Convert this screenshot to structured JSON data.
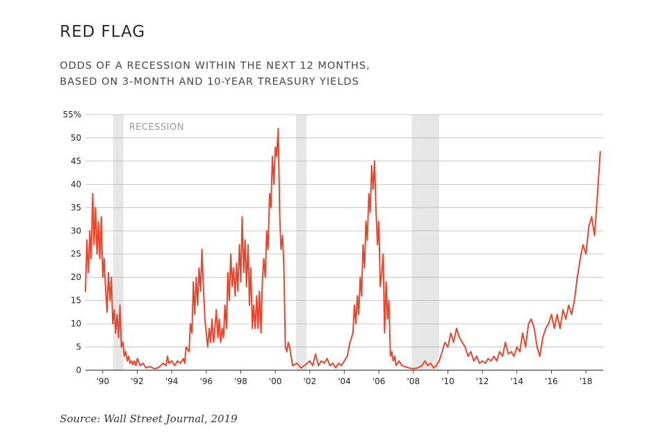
{
  "title": "RED FLAG",
  "subtitle_line1": "ODDS OF A RECESSION WITHIN THE NEXT 12 MONTHS,",
  "subtitle_line2": "BASED ON 3-MONTH AND 10-YEAR TREASURY YIELDS",
  "source": "Source: Wall Street Journal, 2019",
  "colors": {
    "line": "#e8452d",
    "recession_band": "#e6e6e6",
    "grid": "#b8b8b8",
    "axis": "#444444"
  },
  "chart_data": {
    "type": "line",
    "title": "RED FLAG",
    "subtitle": "ODDS OF A RECESSION WITHIN THE NEXT 12 MONTHS, BASED ON 3-MONTH AND 10-YEAR TREASURY YIELDS",
    "xlabel": "",
    "ylabel": "",
    "xlim": [
      1989.0,
      2019.0
    ],
    "ylim": [
      0,
      55
    ],
    "y_ticks": [
      0,
      5,
      10,
      15,
      20,
      25,
      30,
      35,
      40,
      45,
      50,
      55
    ],
    "y_tick_labels": [
      "0",
      "5",
      "10",
      "15",
      "20",
      "25",
      "30",
      "35",
      "40",
      "45",
      "50",
      "55%"
    ],
    "x_ticks": [
      1990,
      1992,
      1994,
      1996,
      1998,
      2000,
      2002,
      2004,
      2006,
      2008,
      2010,
      2012,
      2014,
      2016,
      2018
    ],
    "x_tick_labels": [
      "'90",
      "'92",
      "'94",
      "'96",
      "'98",
      "'00",
      "'02",
      "'04",
      "'06",
      "'08",
      "'10",
      "'12",
      "'14",
      "'16",
      "'18"
    ],
    "grid": "horizontal",
    "legend": "none",
    "recession_label": "RECESSION",
    "recessions": [
      {
        "start": 1990.6,
        "end": 1991.2
      },
      {
        "start": 2001.2,
        "end": 2001.8
      },
      {
        "start": 2007.9,
        "end": 2009.5
      }
    ],
    "series": [
      {
        "values": [
          [
            1989.0,
            17
          ],
          [
            1989.08,
            28
          ],
          [
            1989.17,
            21
          ],
          [
            1989.25,
            30
          ],
          [
            1989.33,
            24
          ],
          [
            1989.42,
            38
          ],
          [
            1989.5,
            27
          ],
          [
            1989.58,
            35
          ],
          [
            1989.67,
            25
          ],
          [
            1989.75,
            32
          ],
          [
            1989.83,
            24
          ],
          [
            1989.92,
            33
          ],
          [
            1990.0,
            20
          ],
          [
            1990.08,
            24
          ],
          [
            1990.17,
            17
          ],
          [
            1990.25,
            12.5
          ],
          [
            1990.33,
            21
          ],
          [
            1990.42,
            15
          ],
          [
            1990.5,
            20
          ],
          [
            1990.58,
            10
          ],
          [
            1990.67,
            13
          ],
          [
            1990.75,
            8
          ],
          [
            1990.83,
            12
          ],
          [
            1990.92,
            7
          ],
          [
            1991.0,
            14
          ],
          [
            1991.08,
            5
          ],
          [
            1991.17,
            6
          ],
          [
            1991.25,
            3
          ],
          [
            1991.33,
            4
          ],
          [
            1991.42,
            2
          ],
          [
            1991.5,
            3
          ],
          [
            1991.58,
            1.5
          ],
          [
            1991.67,
            2
          ],
          [
            1991.75,
            1.2
          ],
          [
            1991.83,
            2
          ],
          [
            1991.92,
            1
          ],
          [
            1992.0,
            2.5
          ],
          [
            1992.17,
            1
          ],
          [
            1992.33,
            1.5
          ],
          [
            1992.5,
            0.5
          ],
          [
            1992.75,
            0.8
          ],
          [
            1993.0,
            0.3
          ],
          [
            1993.25,
            0.6
          ],
          [
            1993.5,
            1.5
          ],
          [
            1993.67,
            1
          ],
          [
            1993.75,
            3
          ],
          [
            1993.83,
            1.5
          ],
          [
            1994.0,
            2
          ],
          [
            1994.17,
            1
          ],
          [
            1994.33,
            2
          ],
          [
            1994.5,
            1.5
          ],
          [
            1994.67,
            2.5
          ],
          [
            1994.75,
            1.5
          ],
          [
            1994.83,
            5
          ],
          [
            1995.0,
            4
          ],
          [
            1995.08,
            10
          ],
          [
            1995.17,
            8
          ],
          [
            1995.25,
            19
          ],
          [
            1995.33,
            12
          ],
          [
            1995.42,
            20
          ],
          [
            1995.5,
            14
          ],
          [
            1995.58,
            22
          ],
          [
            1995.67,
            17
          ],
          [
            1995.75,
            26
          ],
          [
            1995.83,
            18
          ],
          [
            1995.92,
            11
          ],
          [
            1996.0,
            8
          ],
          [
            1996.08,
            5
          ],
          [
            1996.17,
            9
          ],
          [
            1996.25,
            6
          ],
          [
            1996.33,
            11
          ],
          [
            1996.42,
            6
          ],
          [
            1996.5,
            9
          ],
          [
            1996.58,
            13
          ],
          [
            1996.67,
            7
          ],
          [
            1996.75,
            11
          ],
          [
            1996.83,
            6
          ],
          [
            1996.92,
            9
          ],
          [
            1997.0,
            7
          ],
          [
            1997.08,
            14
          ],
          [
            1997.17,
            9
          ],
          [
            1997.25,
            21
          ],
          [
            1997.33,
            15
          ],
          [
            1997.42,
            25
          ],
          [
            1997.5,
            18
          ],
          [
            1997.58,
            22
          ],
          [
            1997.67,
            16
          ],
          [
            1997.75,
            23
          ],
          [
            1997.83,
            17
          ],
          [
            1997.92,
            27
          ],
          [
            1998.0,
            19
          ],
          [
            1998.08,
            33
          ],
          [
            1998.17,
            21
          ],
          [
            1998.25,
            28
          ],
          [
            1998.33,
            18
          ],
          [
            1998.42,
            27
          ],
          [
            1998.5,
            14
          ],
          [
            1998.58,
            22
          ],
          [
            1998.67,
            9
          ],
          [
            1998.75,
            14
          ],
          [
            1998.83,
            9
          ],
          [
            1998.92,
            16
          ],
          [
            1999.0,
            9
          ],
          [
            1999.08,
            17
          ],
          [
            1999.17,
            8
          ],
          [
            1999.25,
            19
          ],
          [
            1999.33,
            24
          ],
          [
            1999.42,
            20
          ],
          [
            1999.5,
            30
          ],
          [
            1999.58,
            26
          ],
          [
            1999.67,
            38
          ],
          [
            1999.75,
            35
          ],
          [
            1999.83,
            46
          ],
          [
            1999.92,
            40
          ],
          [
            2000.0,
            48
          ],
          [
            2000.08,
            46
          ],
          [
            2000.17,
            52
          ],
          [
            2000.25,
            34
          ],
          [
            2000.33,
            26
          ],
          [
            2000.42,
            29
          ],
          [
            2000.5,
            22
          ],
          [
            2000.58,
            5
          ],
          [
            2000.67,
            4
          ],
          [
            2000.75,
            6
          ],
          [
            2000.83,
            5
          ],
          [
            2000.92,
            3
          ],
          [
            2001.0,
            1
          ],
          [
            2001.25,
            1.5
          ],
          [
            2001.5,
            0.5
          ],
          [
            2001.75,
            1.2
          ],
          [
            2002.0,
            2
          ],
          [
            2002.17,
            1
          ],
          [
            2002.33,
            3.5
          ],
          [
            2002.5,
            1
          ],
          [
            2002.67,
            2
          ],
          [
            2002.83,
            1.5
          ],
          [
            2003.0,
            2.5
          ],
          [
            2003.17,
            1
          ],
          [
            2003.33,
            1.5
          ],
          [
            2003.5,
            0.5
          ],
          [
            2003.67,
            1.5
          ],
          [
            2003.83,
            1
          ],
          [
            2004.0,
            2
          ],
          [
            2004.17,
            3
          ],
          [
            2004.33,
            6
          ],
          [
            2004.5,
            8
          ],
          [
            2004.58,
            14
          ],
          [
            2004.67,
            10
          ],
          [
            2004.75,
            16
          ],
          [
            2004.83,
            12
          ],
          [
            2004.92,
            20
          ],
          [
            2005.0,
            16
          ],
          [
            2005.08,
            27
          ],
          [
            2005.17,
            22
          ],
          [
            2005.25,
            32
          ],
          [
            2005.33,
            28
          ],
          [
            2005.42,
            38
          ],
          [
            2005.5,
            34
          ],
          [
            2005.58,
            44
          ],
          [
            2005.67,
            39
          ],
          [
            2005.75,
            45
          ],
          [
            2005.83,
            35
          ],
          [
            2005.92,
            27
          ],
          [
            2006.0,
            32
          ],
          [
            2006.08,
            18
          ],
          [
            2006.17,
            21
          ],
          [
            2006.25,
            25
          ],
          [
            2006.33,
            8
          ],
          [
            2006.42,
            19
          ],
          [
            2006.5,
            11
          ],
          [
            2006.58,
            15
          ],
          [
            2006.67,
            3
          ],
          [
            2006.75,
            4
          ],
          [
            2006.83,
            2
          ],
          [
            2006.92,
            3
          ],
          [
            2007.0,
            1
          ],
          [
            2007.17,
            2
          ],
          [
            2007.33,
            1
          ],
          [
            2007.5,
            0.8
          ],
          [
            2007.75,
            0.5
          ],
          [
            2008.0,
            0.3
          ],
          [
            2008.25,
            0.5
          ],
          [
            2008.5,
            1
          ],
          [
            2008.67,
            2
          ],
          [
            2008.83,
            1
          ],
          [
            2009.0,
            1.5
          ],
          [
            2009.17,
            0.5
          ],
          [
            2009.33,
            1
          ],
          [
            2009.5,
            2
          ],
          [
            2009.67,
            4
          ],
          [
            2009.83,
            6
          ],
          [
            2010.0,
            5
          ],
          [
            2010.17,
            8
          ],
          [
            2010.33,
            6
          ],
          [
            2010.5,
            9
          ],
          [
            2010.67,
            7
          ],
          [
            2010.83,
            6
          ],
          [
            2011.0,
            5
          ],
          [
            2011.17,
            3
          ],
          [
            2011.33,
            4
          ],
          [
            2011.5,
            2
          ],
          [
            2011.67,
            3
          ],
          [
            2011.83,
            1.5
          ],
          [
            2012.0,
            2
          ],
          [
            2012.17,
            1.5
          ],
          [
            2012.33,
            2.5
          ],
          [
            2012.5,
            2
          ],
          [
            2012.67,
            3
          ],
          [
            2012.83,
            2
          ],
          [
            2013.0,
            4
          ],
          [
            2013.17,
            3
          ],
          [
            2013.33,
            6
          ],
          [
            2013.5,
            3.5
          ],
          [
            2013.67,
            4
          ],
          [
            2013.83,
            3
          ],
          [
            2014.0,
            5
          ],
          [
            2014.17,
            4
          ],
          [
            2014.33,
            8
          ],
          [
            2014.5,
            5
          ],
          [
            2014.67,
            10
          ],
          [
            2014.83,
            11
          ],
          [
            2015.0,
            9
          ],
          [
            2015.17,
            5
          ],
          [
            2015.33,
            3
          ],
          [
            2015.5,
            7
          ],
          [
            2015.67,
            9
          ],
          [
            2015.83,
            10
          ],
          [
            2016.0,
            12
          ],
          [
            2016.17,
            9
          ],
          [
            2016.33,
            12
          ],
          [
            2016.5,
            9
          ],
          [
            2016.67,
            13
          ],
          [
            2016.83,
            11
          ],
          [
            2017.0,
            14
          ],
          [
            2017.17,
            12
          ],
          [
            2017.33,
            15
          ],
          [
            2017.5,
            20
          ],
          [
            2017.67,
            24
          ],
          [
            2017.83,
            27
          ],
          [
            2018.0,
            25
          ],
          [
            2018.17,
            31
          ],
          [
            2018.33,
            33
          ],
          [
            2018.5,
            29
          ],
          [
            2018.67,
            38
          ],
          [
            2018.83,
            47
          ]
        ]
      }
    ]
  }
}
